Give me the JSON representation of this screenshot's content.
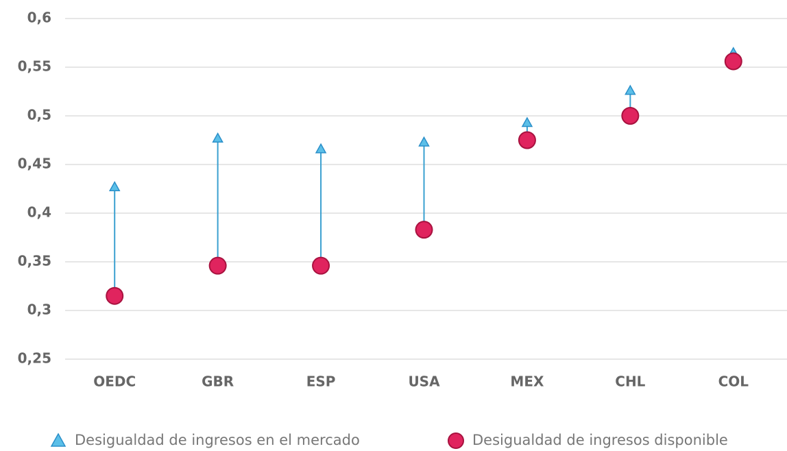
{
  "chart_data": {
    "type": "dumbbell",
    "categories": [
      "OEDC",
      "GBR",
      "ESP",
      "USA",
      "MEX",
      "CHL",
      "COL"
    ],
    "series": [
      {
        "name": "Desigualdad de ingresos en el mercado",
        "color": "#5bbfe8",
        "marker": "triangle",
        "values": [
          0.427,
          0.477,
          0.466,
          0.473,
          0.493,
          0.526,
          0.565
        ]
      },
      {
        "name": "Desigualdad de ingresos disponible",
        "color": "#e0245e",
        "marker": "circle",
        "values": [
          0.315,
          0.346,
          0.346,
          0.383,
          0.475,
          0.5,
          0.556
        ]
      }
    ],
    "connector_color": "#3aa0d0",
    "ylim": [
      0.25,
      0.6
    ],
    "yticks": [
      {
        "value": 0.25,
        "label": "0,25"
      },
      {
        "value": 0.3,
        "label": "0,3"
      },
      {
        "value": 0.35,
        "label": "0,35"
      },
      {
        "value": 0.4,
        "label": "0,4"
      },
      {
        "value": 0.45,
        "label": "0,45"
      },
      {
        "value": 0.5,
        "label": "0,5"
      },
      {
        "value": 0.55,
        "label": "0,55"
      },
      {
        "value": 0.6,
        "label": "0,6"
      }
    ],
    "grid": true
  }
}
